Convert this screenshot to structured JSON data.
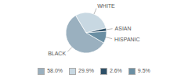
{
  "chart_data": {
    "type": "pie",
    "categories": [
      "BLACK",
      "WHITE",
      "ASIAN",
      "HISPANIC"
    ],
    "values": [
      58.0,
      29.9,
      2.6,
      9.5
    ],
    "value_labels": [
      "58.0%",
      "29.9%",
      "2.6%",
      "9.5%"
    ],
    "colors": [
      "#9ab0bf",
      "#c8d8e2",
      "#2e5068",
      "#6b8fa3"
    ],
    "legend": "bottom"
  }
}
